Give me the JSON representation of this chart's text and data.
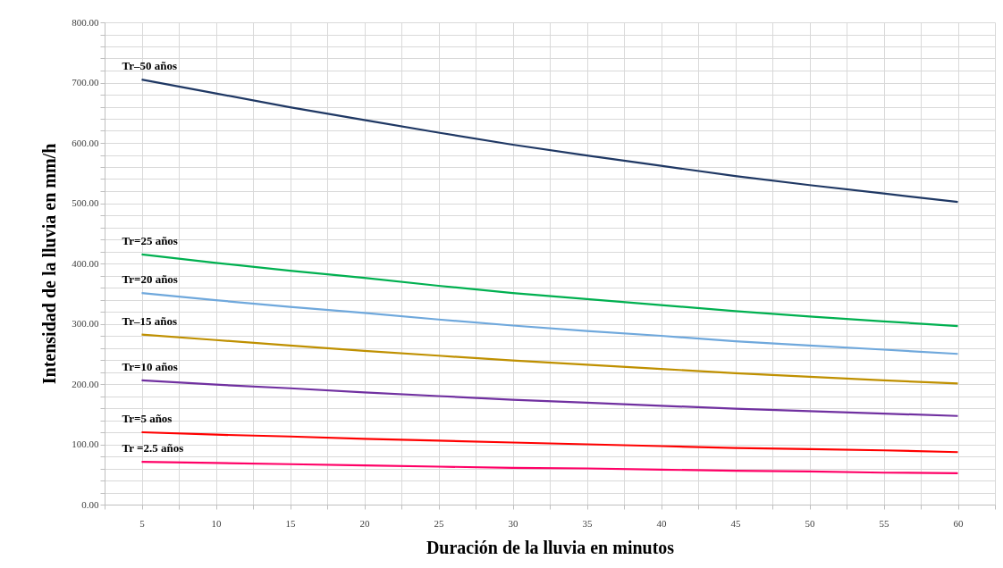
{
  "chart_data": {
    "type": "line",
    "xlabel": "Duración de la lluvia en minutos",
    "ylabel": "Intensidad de la lluvia en mm/h",
    "x": [
      5,
      10,
      15,
      20,
      25,
      30,
      35,
      40,
      45,
      50,
      55,
      60
    ],
    "series": [
      {
        "name": "Tr–50 años",
        "color": "#1f3864",
        "values": [
          705,
          682,
          659,
          638,
          617,
          597,
          579,
          562,
          545,
          530,
          516,
          502
        ]
      },
      {
        "name": "Tr=25 años",
        "color": "#00b050",
        "values": [
          415,
          401,
          388,
          376,
          363,
          351,
          341,
          331,
          321,
          312,
          304,
          296
        ]
      },
      {
        "name": "Tr=20 años",
        "color": "#6fa8dc",
        "values": [
          351,
          339,
          328,
          318,
          307,
          297,
          288,
          280,
          271,
          264,
          257,
          250
        ]
      },
      {
        "name": "Tr–15   años",
        "color": "#bf9000",
        "values": [
          282,
          273,
          264,
          255,
          247,
          239,
          232,
          225,
          218,
          212,
          206,
          201
        ]
      },
      {
        "name": "Tr=10  años",
        "color": "#7030a0",
        "values": [
          206,
          199,
          193,
          186,
          180,
          174,
          169,
          164,
          159,
          155,
          151,
          147
        ]
      },
      {
        "name": "Tr=5 años",
        "color": "#ff0000",
        "values": [
          120,
          116,
          113,
          109,
          106,
          103,
          100,
          97,
          94,
          92,
          90,
          87
        ]
      },
      {
        "name": "Tr =2.5 años",
        "color": "#ff0066",
        "values": [
          71,
          69,
          67,
          65,
          63,
          61,
          60,
          58,
          56,
          55,
          53,
          52
        ]
      }
    ],
    "xlim": [
      2.5,
      62.5
    ],
    "xticks": [
      {
        "value": 2.5,
        "label": null
      },
      5,
      {
        "value": 7.5,
        "label": null
      },
      10,
      {
        "value": 12.5,
        "label": null
      },
      15,
      {
        "value": 17.5,
        "label": null
      },
      20,
      {
        "value": 22.5,
        "label": null
      },
      25,
      {
        "value": 27.5,
        "label": null
      },
      30,
      {
        "value": 32.5,
        "label": null
      },
      35,
      {
        "value": 37.5,
        "label": null
      },
      40,
      {
        "value": 42.5,
        "label": null
      },
      45,
      {
        "value": 47.5,
        "label": null
      },
      50,
      {
        "value": 52.5,
        "label": null
      },
      55,
      {
        "value": 57.5,
        "label": null
      },
      60,
      {
        "value": 62.5,
        "label": null
      }
    ],
    "ylim": [
      0,
      800
    ],
    "yticks": [
      {
        "value": 0,
        "label": "0.00"
      },
      {
        "value": 20,
        "label": null
      },
      {
        "value": 40,
        "label": null
      },
      {
        "value": 60,
        "label": null
      },
      {
        "value": 80,
        "label": null
      },
      {
        "value": 100,
        "label": "100.00"
      },
      {
        "value": 120,
        "label": null
      },
      {
        "value": 140,
        "label": null
      },
      {
        "value": 160,
        "label": null
      },
      {
        "value": 180,
        "label": null
      },
      {
        "value": 200,
        "label": "200.00"
      },
      {
        "value": 220,
        "label": null
      },
      {
        "value": 240,
        "label": null
      },
      {
        "value": 260,
        "label": null
      },
      {
        "value": 280,
        "label": null
      },
      {
        "value": 300,
        "label": "300.00"
      },
      {
        "value": 320,
        "label": null
      },
      {
        "value": 340,
        "label": null
      },
      {
        "value": 360,
        "label": null
      },
      {
        "value": 380,
        "label": null
      },
      {
        "value": 400,
        "label": "400.00"
      },
      {
        "value": 420,
        "label": null
      },
      {
        "value": 440,
        "label": null
      },
      {
        "value": 460,
        "label": null
      },
      {
        "value": 480,
        "label": null
      },
      {
        "value": 500,
        "label": "500.00"
      },
      {
        "value": 520,
        "label": null
      },
      {
        "value": 540,
        "label": null
      },
      {
        "value": 560,
        "label": null
      },
      {
        "value": 580,
        "label": null
      },
      {
        "value": 600,
        "label": "600.00"
      },
      {
        "value": 620,
        "label": null
      },
      {
        "value": 640,
        "label": null
      },
      {
        "value": 660,
        "label": null
      },
      {
        "value": 680,
        "label": null
      },
      {
        "value": 700,
        "label": "700.00"
      },
      {
        "value": 720,
        "label": null
      },
      {
        "value": 740,
        "label": null
      },
      {
        "value": 760,
        "label": null
      },
      {
        "value": 780,
        "label": null
      },
      {
        "value": 800,
        "label": "800.00"
      }
    ],
    "grid": true,
    "legend": false,
    "marker": "none",
    "line_style": "solid"
  }
}
